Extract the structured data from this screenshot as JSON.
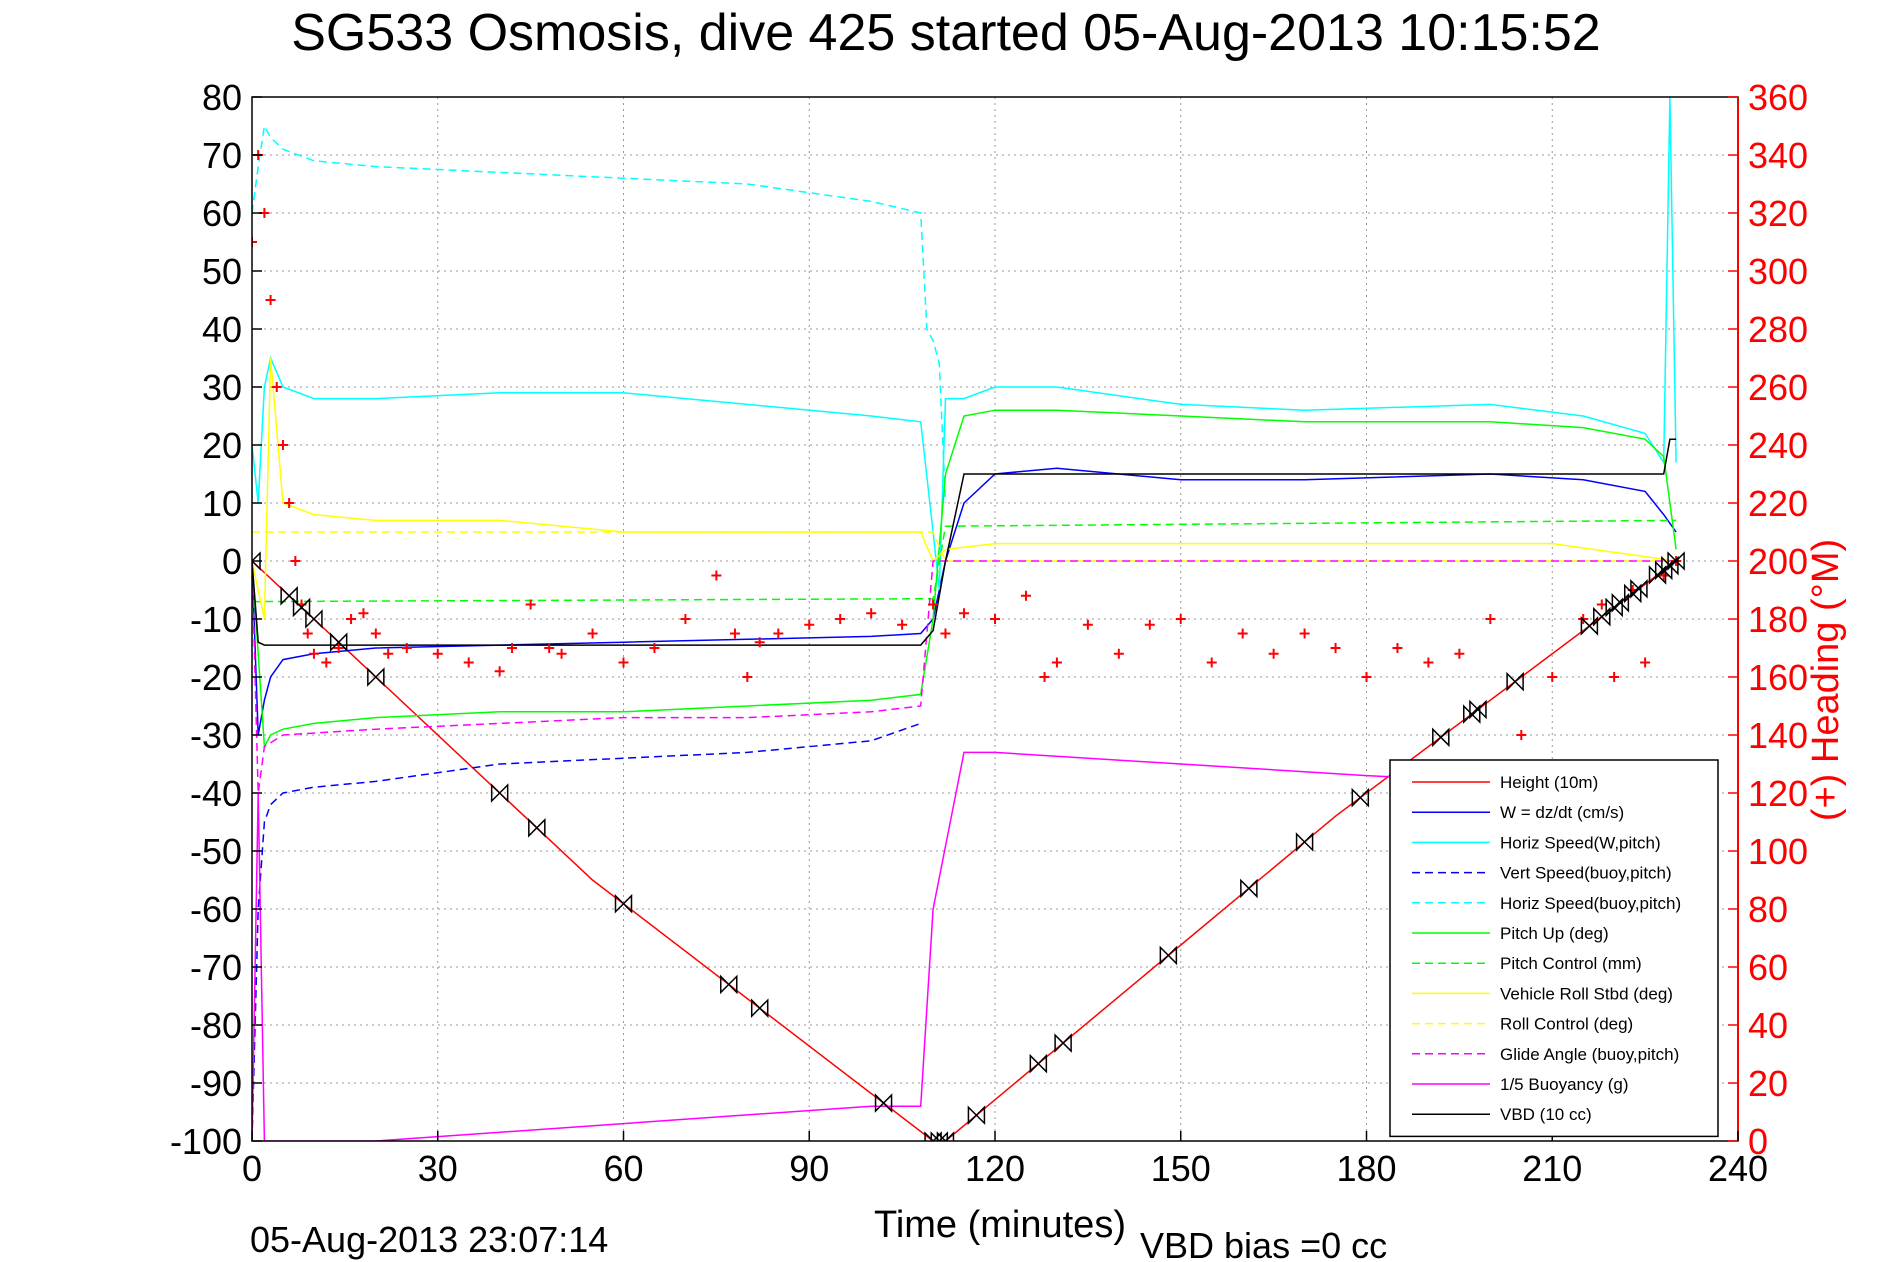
{
  "chart_data": {
    "type": "line",
    "title": "SG533 Osmosis, dive 425 started 05-Aug-2013 10:15:52",
    "xlabel": "Time (minutes)",
    "ylabel_right": "(+) Heading (°M)",
    "footer_date": "05-Aug-2013 23:07:14",
    "footer_bias": "VBD bias =0 cc",
    "xlim": [
      0,
      240
    ],
    "ylim": [
      -100,
      80
    ],
    "ylim_right": [
      0,
      360
    ],
    "x_ticks": [
      0,
      30,
      60,
      90,
      120,
      150,
      180,
      210,
      240
    ],
    "y_ticks": [
      80,
      70,
      60,
      50,
      40,
      30,
      20,
      10,
      0,
      -10,
      -20,
      -30,
      -40,
      -50,
      -60,
      -70,
      -80,
      -90,
      -100
    ],
    "y_ticks_right": [
      360,
      340,
      320,
      300,
      280,
      260,
      240,
      220,
      200,
      180,
      160,
      140,
      120,
      100,
      80,
      60,
      40,
      20,
      0
    ],
    "grid": true,
    "legend_position": "bottom-right",
    "series": [
      {
        "name": "Height (10m)",
        "color": "#ff0000",
        "style": "solid",
        "x": [
          0,
          55,
          110,
          112,
          175,
          230
        ],
        "y": [
          0,
          -55,
          -100,
          -100,
          -44,
          0
        ]
      },
      {
        "name": "W = dz/dt (cm/s)",
        "color": "#0000ff",
        "style": "solid",
        "x": [
          0,
          1,
          2,
          3,
          5,
          10,
          20,
          40,
          60,
          80,
          100,
          108,
          110,
          112,
          115,
          120,
          130,
          150,
          170,
          200,
          215,
          225,
          228,
          230
        ],
        "y": [
          0,
          -30,
          -24,
          -20,
          -17,
          -16,
          -15,
          -14.5,
          -14,
          -13.5,
          -13,
          -12.5,
          -10,
          0,
          10,
          15,
          16,
          14,
          14,
          15,
          14,
          12,
          8,
          5
        ]
      },
      {
        "name": "Horiz Speed(W,pitch)",
        "color": "#00ffff",
        "style": "solid",
        "x": [
          0,
          1,
          2,
          3,
          5,
          10,
          20,
          40,
          60,
          80,
          100,
          108,
          110,
          111,
          112,
          115,
          120,
          130,
          150,
          170,
          200,
          215,
          225,
          228,
          229,
          230
        ],
        "y": [
          20,
          10,
          30,
          35,
          30,
          28,
          28,
          29,
          29,
          27,
          25,
          24,
          5,
          -5,
          28,
          28,
          30,
          30,
          27,
          26,
          27,
          25,
          22,
          17,
          80,
          17
        ]
      },
      {
        "name": "Vert Speed(buoy,pitch)",
        "color": "#0000ff",
        "style": "dashed",
        "x": [
          0,
          1,
          2,
          3,
          5,
          10,
          20,
          40,
          60,
          80,
          100,
          108
        ],
        "y": [
          -100,
          -60,
          -45,
          -42,
          -40,
          -39,
          -38,
          -35,
          -34,
          -33,
          -31,
          -28
        ]
      },
      {
        "name": "Horiz Speed(buoy,pitch)",
        "color": "#00ffff",
        "style": "dashed",
        "x": [
          0,
          1,
          2,
          3,
          5,
          10,
          20,
          40,
          60,
          80,
          100,
          108,
          109,
          110,
          111,
          112
        ],
        "y": [
          60,
          68,
          75,
          73,
          71,
          69,
          68,
          67,
          66,
          65,
          62,
          60,
          40,
          38,
          34,
          10
        ]
      },
      {
        "name": "Pitch Up (deg)",
        "color": "#00ff00",
        "style": "solid",
        "x": [
          0,
          2,
          3,
          5,
          10,
          20,
          40,
          60,
          80,
          100,
          108,
          110,
          112,
          115,
          120,
          130,
          150,
          170,
          200,
          215,
          225,
          228,
          230
        ],
        "y": [
          0,
          -32,
          -30,
          -29,
          -28,
          -27,
          -26,
          -26,
          -25,
          -24,
          -23,
          -10,
          15,
          25,
          26,
          26,
          25,
          24,
          24,
          23,
          21,
          18,
          2
        ]
      },
      {
        "name": "Pitch Control (mm)",
        "color": "#00ff00",
        "style": "dashed",
        "x": [
          0,
          110,
          112,
          230
        ],
        "y": [
          -7,
          -6.5,
          6,
          7
        ]
      },
      {
        "name": "Vehicle Roll Stbd (deg)",
        "color": "#ffff00",
        "style": "solid",
        "x": [
          0,
          2,
          3,
          5,
          10,
          20,
          40,
          60,
          80,
          100,
          108,
          110,
          112,
          120,
          150,
          180,
          210,
          230
        ],
        "y": [
          0,
          -10,
          35,
          10,
          8,
          7,
          7,
          5,
          5,
          5,
          5,
          0,
          2,
          3,
          3,
          3,
          3,
          0
        ]
      },
      {
        "name": "Roll Control (deg)",
        "color": "#ffff00",
        "style": "dashed",
        "x": [
          0,
          110,
          112,
          230
        ],
        "y": [
          5,
          5,
          0,
          0
        ]
      },
      {
        "name": "Glide Angle (buoy,pitch)",
        "color": "#ff00ff",
        "style": "dashed",
        "x": [
          0,
          1,
          2,
          5,
          20,
          40,
          60,
          80,
          100,
          108,
          110,
          112,
          230
        ],
        "y": [
          0,
          -40,
          -32,
          -30,
          -29,
          -28,
          -27,
          -27,
          -26,
          -25,
          0,
          0,
          0
        ]
      },
      {
        "name": "1/5 Buoyancy (g)",
        "color": "#ff00ff",
        "style": "solid",
        "x": [
          0,
          1,
          2,
          20,
          60,
          100,
          108,
          110,
          115,
          120,
          150,
          180,
          200,
          230
        ],
        "y": [
          -100,
          -40,
          -100,
          -100,
          -97,
          -94,
          -94,
          -60,
          -33,
          -33,
          -35,
          -37,
          -38,
          -38
        ]
      },
      {
        "name": "VBD (10 cc)",
        "color": "#000000",
        "style": "solid",
        "x": [
          0,
          1,
          2,
          108,
          110,
          112,
          115,
          120,
          228,
          229,
          230
        ],
        "y": [
          0,
          -14,
          -14.5,
          -14.5,
          -12,
          0,
          15,
          15,
          15,
          21,
          21
        ]
      }
    ],
    "heading_series": {
      "name": "(+) Heading (°M)",
      "color": "#ff0000",
      "marker": "+",
      "x": [
        0,
        1,
        2,
        3,
        4,
        5,
        6,
        7,
        8,
        9,
        10,
        12,
        14,
        16,
        18,
        20,
        22,
        25,
        30,
        35,
        40,
        42,
        45,
        48,
        50,
        55,
        60,
        65,
        70,
        75,
        78,
        80,
        82,
        85,
        90,
        95,
        100,
        105,
        110,
        112,
        115,
        120,
        125,
        128,
        130,
        135,
        140,
        145,
        150,
        155,
        160,
        165,
        170,
        175,
        180,
        185,
        190,
        195,
        200,
        205,
        210,
        215,
        218,
        220,
        223,
        225,
        228,
        230
      ],
      "y": [
        310,
        340,
        320,
        290,
        260,
        240,
        220,
        200,
        185,
        175,
        168,
        165,
        170,
        180,
        182,
        175,
        168,
        170,
        168,
        165,
        162,
        170,
        185,
        170,
        168,
        175,
        165,
        170,
        180,
        195,
        175,
        160,
        172,
        175,
        178,
        180,
        182,
        178,
        185,
        175,
        182,
        180,
        188,
        160,
        165,
        178,
        168,
        178,
        180,
        165,
        175,
        168,
        175,
        170,
        160,
        170,
        165,
        168,
        180,
        140,
        160,
        180,
        185,
        160,
        190,
        165,
        195,
        200
      ]
    },
    "waypoint_markers": {
      "series": "Height (10m)",
      "color": "#000000",
      "x": [
        0,
        6,
        8,
        10,
        14,
        20,
        40,
        46,
        60,
        77,
        82,
        102,
        110,
        111,
        112,
        117,
        127,
        131,
        148,
        161,
        170,
        179,
        192,
        197,
        198,
        204,
        216,
        218,
        220,
        221,
        223,
        224,
        227,
        228,
        229,
        230
      ]
    }
  }
}
